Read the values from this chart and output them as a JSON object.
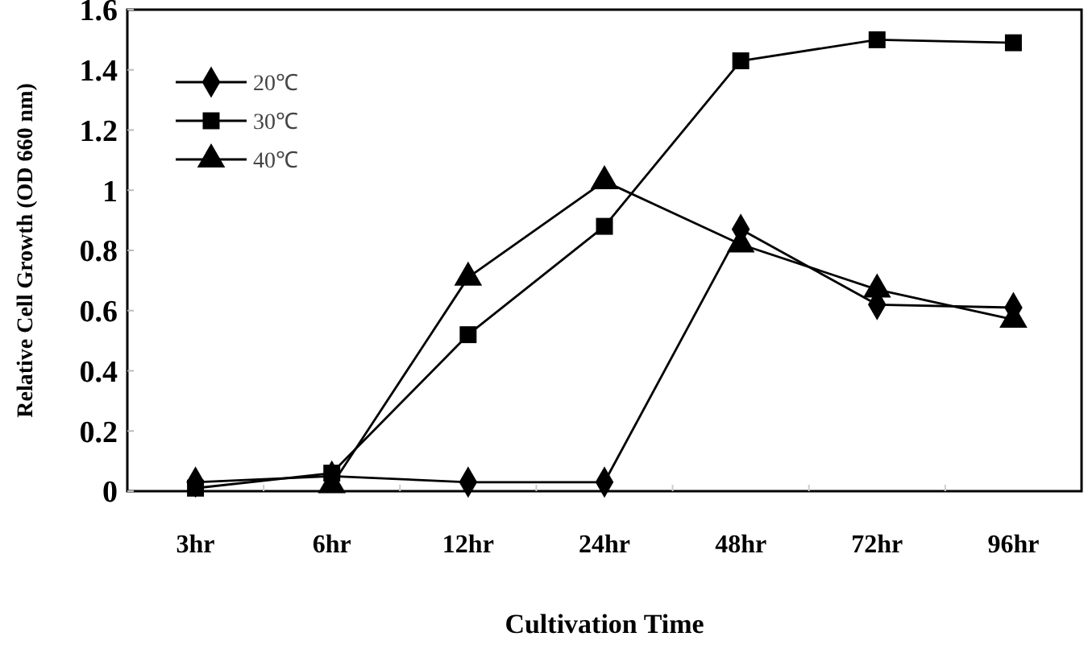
{
  "chart_data": {
    "type": "line",
    "xlabel": "Cultivation Time",
    "ylabel": "Relative Cell Growth (OD 660 nm)",
    "categories": [
      "3hr",
      "6hr",
      "12hr",
      "24hr",
      "48hr",
      "72hr",
      "96hr"
    ],
    "ylim": [
      0,
      1.6
    ],
    "yticks": [
      0,
      0.2,
      0.4,
      0.6,
      0.8,
      1,
      1.2,
      1.4,
      1.6
    ],
    "grid": false,
    "legend": "top left",
    "line_style": "solid",
    "series": [
      {
        "name": "20℃",
        "color": "#000000",
        "marker": "diamond",
        "values": [
          0.03,
          0.05,
          0.03,
          0.03,
          0.87,
          0.62,
          0.61
        ]
      },
      {
        "name": "30℃",
        "color": "#000000",
        "marker": "square",
        "values": [
          0.01,
          0.06,
          0.52,
          0.88,
          1.43,
          1.5,
          1.49
        ]
      },
      {
        "name": "40℃",
        "color": "#000000",
        "marker": "triangle",
        "values": [
          null,
          0.02,
          0.71,
          1.03,
          0.82,
          0.67,
          0.57
        ]
      }
    ]
  }
}
